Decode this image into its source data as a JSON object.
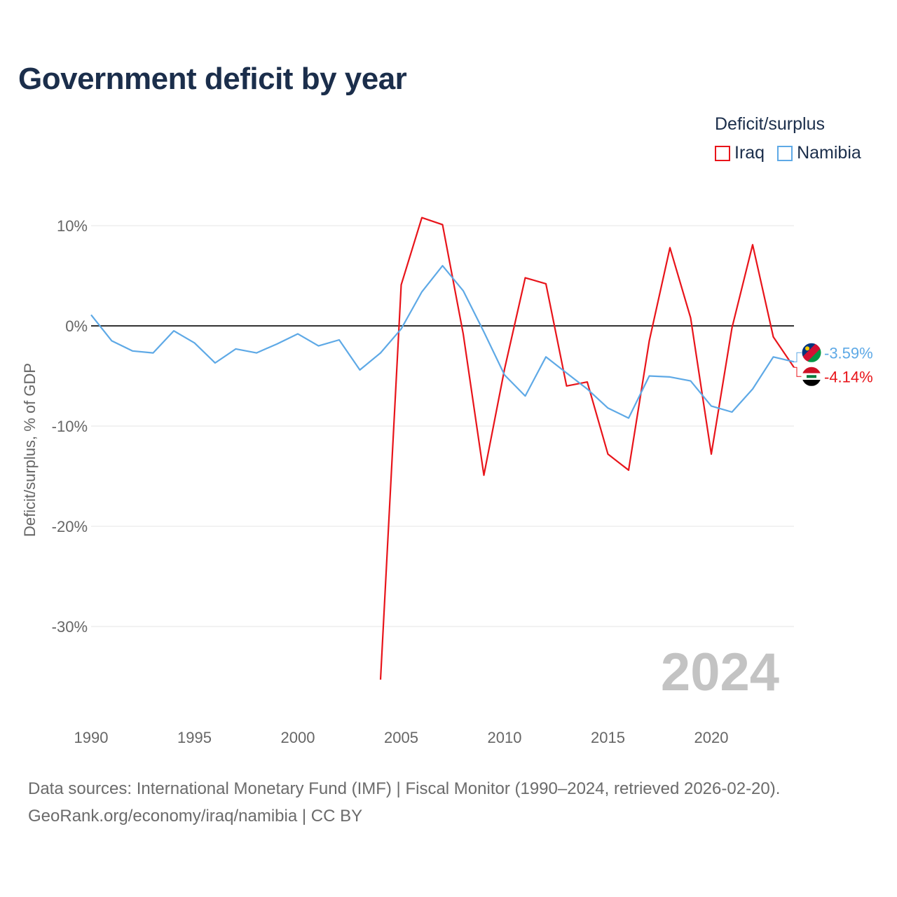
{
  "title": "Government deficit by year",
  "legend": {
    "title": "Deficit/surplus",
    "items": [
      {
        "label": "Iraq",
        "color": "#e8141a"
      },
      {
        "label": "Namibia",
        "color": "#5ea9e6"
      }
    ]
  },
  "footer": {
    "line1": "Data sources: International Monetary Fund (IMF) | Fiscal Monitor (1990–2024, retrieved 2026-02-20).",
    "line2": "GeoRank.org/economy/iraq/namibia | CC BY"
  },
  "chart_data": {
    "type": "line",
    "title": "Government deficit by year",
    "xlabel": "",
    "ylabel": "Deficit/surplus, % of GDP",
    "xlim": [
      1990,
      2024
    ],
    "ylim": [
      -37.5,
      13
    ],
    "x_ticks": [
      1990,
      1995,
      2000,
      2005,
      2010,
      2015,
      2020
    ],
    "x_tick_labels": [
      "1990",
      "1995",
      "2000",
      "2005",
      "2010",
      "2015",
      "2020"
    ],
    "y_ticks": [
      10,
      0,
      -10,
      -20,
      -30
    ],
    "y_tick_labels": [
      "10%",
      "0%",
      "-10%",
      "-20%",
      "-30%"
    ],
    "grid": true,
    "watermark_year": "2024",
    "series": [
      {
        "name": "Iraq",
        "color": "#e8141a",
        "end_label": "-4.14%",
        "x": [
          2004,
          2005,
          2006,
          2007,
          2008,
          2009,
          2010,
          2011,
          2012,
          2013,
          2014,
          2015,
          2016,
          2017,
          2018,
          2019,
          2020,
          2021,
          2022,
          2023,
          2024
        ],
        "values": [
          -35.3,
          4.1,
          10.8,
          10.1,
          -0.8,
          -14.9,
          -4.3,
          4.8,
          4.2,
          -6.0,
          -5.6,
          -12.8,
          -14.4,
          -1.5,
          7.8,
          0.8,
          -12.8,
          -0.2,
          8.1,
          -1.1,
          -4.14
        ]
      },
      {
        "name": "Namibia",
        "color": "#5ea9e6",
        "end_label": "-3.59%",
        "x": [
          1990,
          1991,
          1992,
          1993,
          1994,
          1995,
          1996,
          1997,
          1998,
          1999,
          2000,
          2001,
          2002,
          2003,
          2004,
          2005,
          2006,
          2007,
          2008,
          2009,
          2010,
          2011,
          2012,
          2013,
          2014,
          2015,
          2016,
          2017,
          2018,
          2019,
          2020,
          2021,
          2022,
          2023,
          2024
        ],
        "values": [
          1.1,
          -1.5,
          -2.5,
          -2.7,
          -0.5,
          -1.7,
          -3.7,
          -2.3,
          -2.7,
          -1.8,
          -0.8,
          -2.0,
          -1.4,
          -4.4,
          -2.7,
          -0.3,
          3.4,
          6.0,
          3.5,
          -0.6,
          -4.9,
          -7.0,
          -3.1,
          -4.7,
          -6.3,
          -8.2,
          -9.2,
          -5.0,
          -5.1,
          -5.5,
          -8.0,
          -8.6,
          -6.3,
          -3.1,
          -3.59
        ]
      }
    ]
  }
}
